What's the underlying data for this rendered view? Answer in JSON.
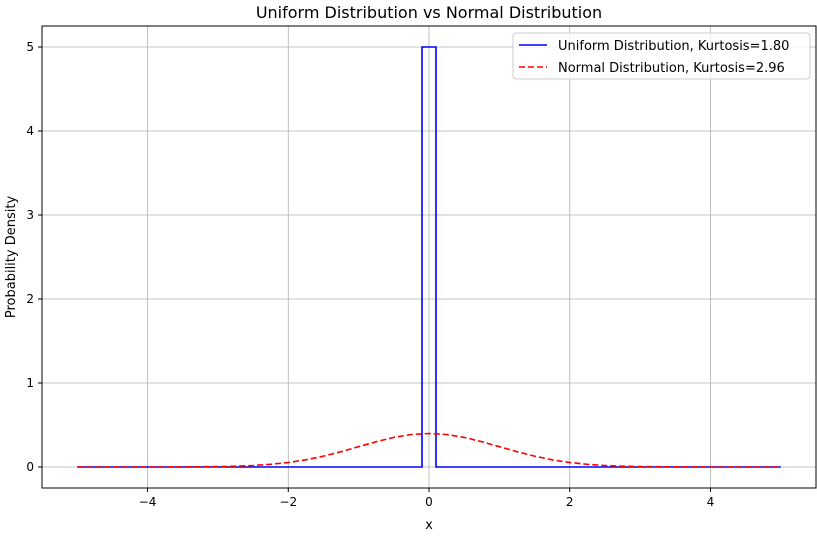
{
  "chart_data": {
    "type": "line",
    "title": "Uniform Distribution vs Normal Distribution",
    "xlabel": "x",
    "ylabel": "Probability Density",
    "xlim": [
      -5.5,
      5.5
    ],
    "ylim": [
      -0.25,
      5.25
    ],
    "xticks": [
      -4,
      -2,
      0,
      2,
      4
    ],
    "xtick_labels": [
      "−4",
      "−2",
      "0",
      "2",
      "4"
    ],
    "yticks": [
      0,
      1,
      2,
      3,
      4,
      5
    ],
    "ytick_labels": [
      "0",
      "1",
      "2",
      "3",
      "4",
      "5"
    ],
    "grid": true,
    "legend_position": "top-right",
    "series": [
      {
        "name": "Uniform Distribution, Kurtosis=1.80",
        "color": "#0000ff",
        "style": "solid",
        "x": [
          -5,
          -0.1,
          -0.1,
          0.1,
          0.1,
          5
        ],
        "y": [
          0,
          0,
          5,
          5,
          0,
          0
        ]
      },
      {
        "name": "Normal Distribution, Kurtosis=2.96",
        "color": "#ff0000",
        "style": "dashed",
        "x": [
          -5,
          -4.5,
          -4,
          -3.5,
          -3,
          -2.75,
          -2.5,
          -2.25,
          -2,
          -1.75,
          -1.5,
          -1.25,
          -1,
          -0.75,
          -0.5,
          -0.25,
          0,
          0.25,
          0.5,
          0.75,
          1,
          1.25,
          1.5,
          1.75,
          2,
          2.25,
          2.5,
          2.75,
          3,
          3.5,
          4,
          4.5,
          5
        ],
        "y": [
          0.0,
          0.0,
          0.0001,
          0.0009,
          0.0044,
          0.0091,
          0.0175,
          0.0317,
          0.054,
          0.0863,
          0.1295,
          0.1826,
          0.242,
          0.3011,
          0.3521,
          0.3867,
          0.3989,
          0.3867,
          0.3521,
          0.3011,
          0.242,
          0.1826,
          0.1295,
          0.0863,
          0.054,
          0.0317,
          0.0175,
          0.0091,
          0.0044,
          0.0009,
          0.0001,
          0.0,
          0.0
        ]
      }
    ]
  }
}
